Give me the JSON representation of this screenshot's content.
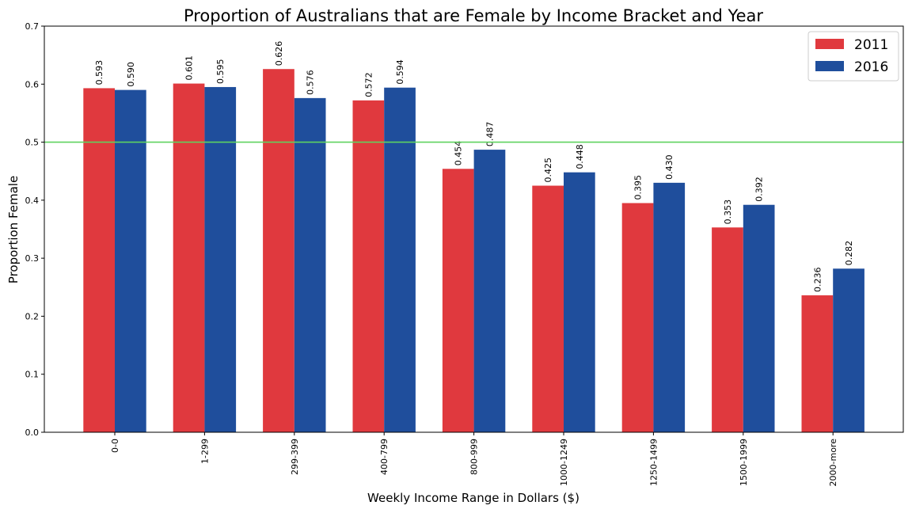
{
  "chart_data": {
    "type": "bar",
    "title": "Proportion of Australians that are Female by Income Bracket and Year",
    "xlabel": "Weekly Income Range in Dollars ($)",
    "ylabel": "Proportion Female",
    "ylim": [
      0,
      0.7
    ],
    "yticks": [
      "0.0",
      "0.1",
      "0.2",
      "0.3",
      "0.4",
      "0.5",
      "0.6",
      "0.7"
    ],
    "categories": [
      "0-0",
      "1-299",
      "299-399",
      "400-799",
      "800-999",
      "1000-1249",
      "1250-1499",
      "1500-1999",
      "2000-more"
    ],
    "series": [
      {
        "name": "2011",
        "color": "#e0393e",
        "values": [
          0.593,
          0.601,
          0.626,
          0.572,
          0.454,
          0.425,
          0.395,
          0.353,
          0.236
        ],
        "labels": [
          "0.593",
          "0.601",
          "0.626",
          "0.572",
          "0.454",
          "0.425",
          "0.395",
          "0.353",
          "0.236"
        ]
      },
      {
        "name": "2016",
        "color": "#1f4e9c",
        "values": [
          0.59,
          0.595,
          0.576,
          0.594,
          0.487,
          0.448,
          0.43,
          0.392,
          0.282
        ],
        "labels": [
          "0.590",
          "0.595",
          "0.576",
          "0.594",
          "0.487",
          "0.448",
          "0.430",
          "0.392",
          "0.282"
        ]
      }
    ],
    "reference_line": {
      "y": 0.5,
      "color": "#5fd35f"
    },
    "legend_position": "top-right",
    "grid": false
  }
}
